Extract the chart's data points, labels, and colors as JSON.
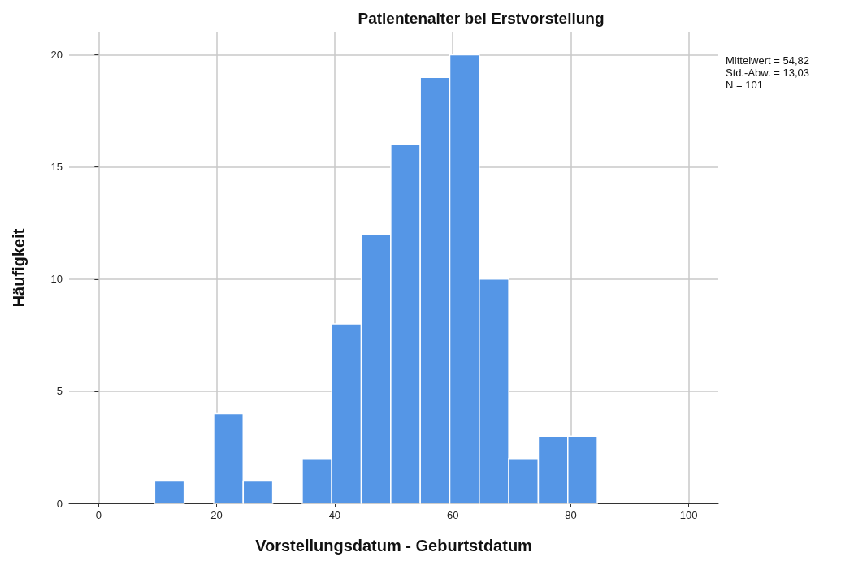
{
  "chart_data": {
    "type": "histogram",
    "title": "Patientenalter bei Erstvorstellung",
    "xlabel": "Vorstellungsdatum - Geburtstdatum",
    "ylabel": "Häufigkeit",
    "bins": [
      9.5,
      14.5,
      19.5,
      24.5,
      29.5,
      34.5,
      39.5,
      44.5,
      49.5,
      54.5,
      59.5,
      64.5,
      69.5,
      74.5,
      79.5,
      84.5
    ],
    "values": [
      1,
      0,
      4,
      1,
      0,
      2,
      8,
      12,
      16,
      19,
      20,
      10,
      2,
      3,
      3
    ],
    "color": "#5596e6",
    "xlim": [
      -5,
      105
    ],
    "xticks": [
      0,
      20,
      40,
      60,
      80,
      100
    ],
    "ylim": [
      0,
      21
    ],
    "yticks": [
      0,
      5,
      10,
      15,
      20
    ],
    "grid": true,
    "annotations": [
      "Mittelwert = 54,82",
      "Std.-Abw. = 13,03",
      "N = 101"
    ]
  }
}
